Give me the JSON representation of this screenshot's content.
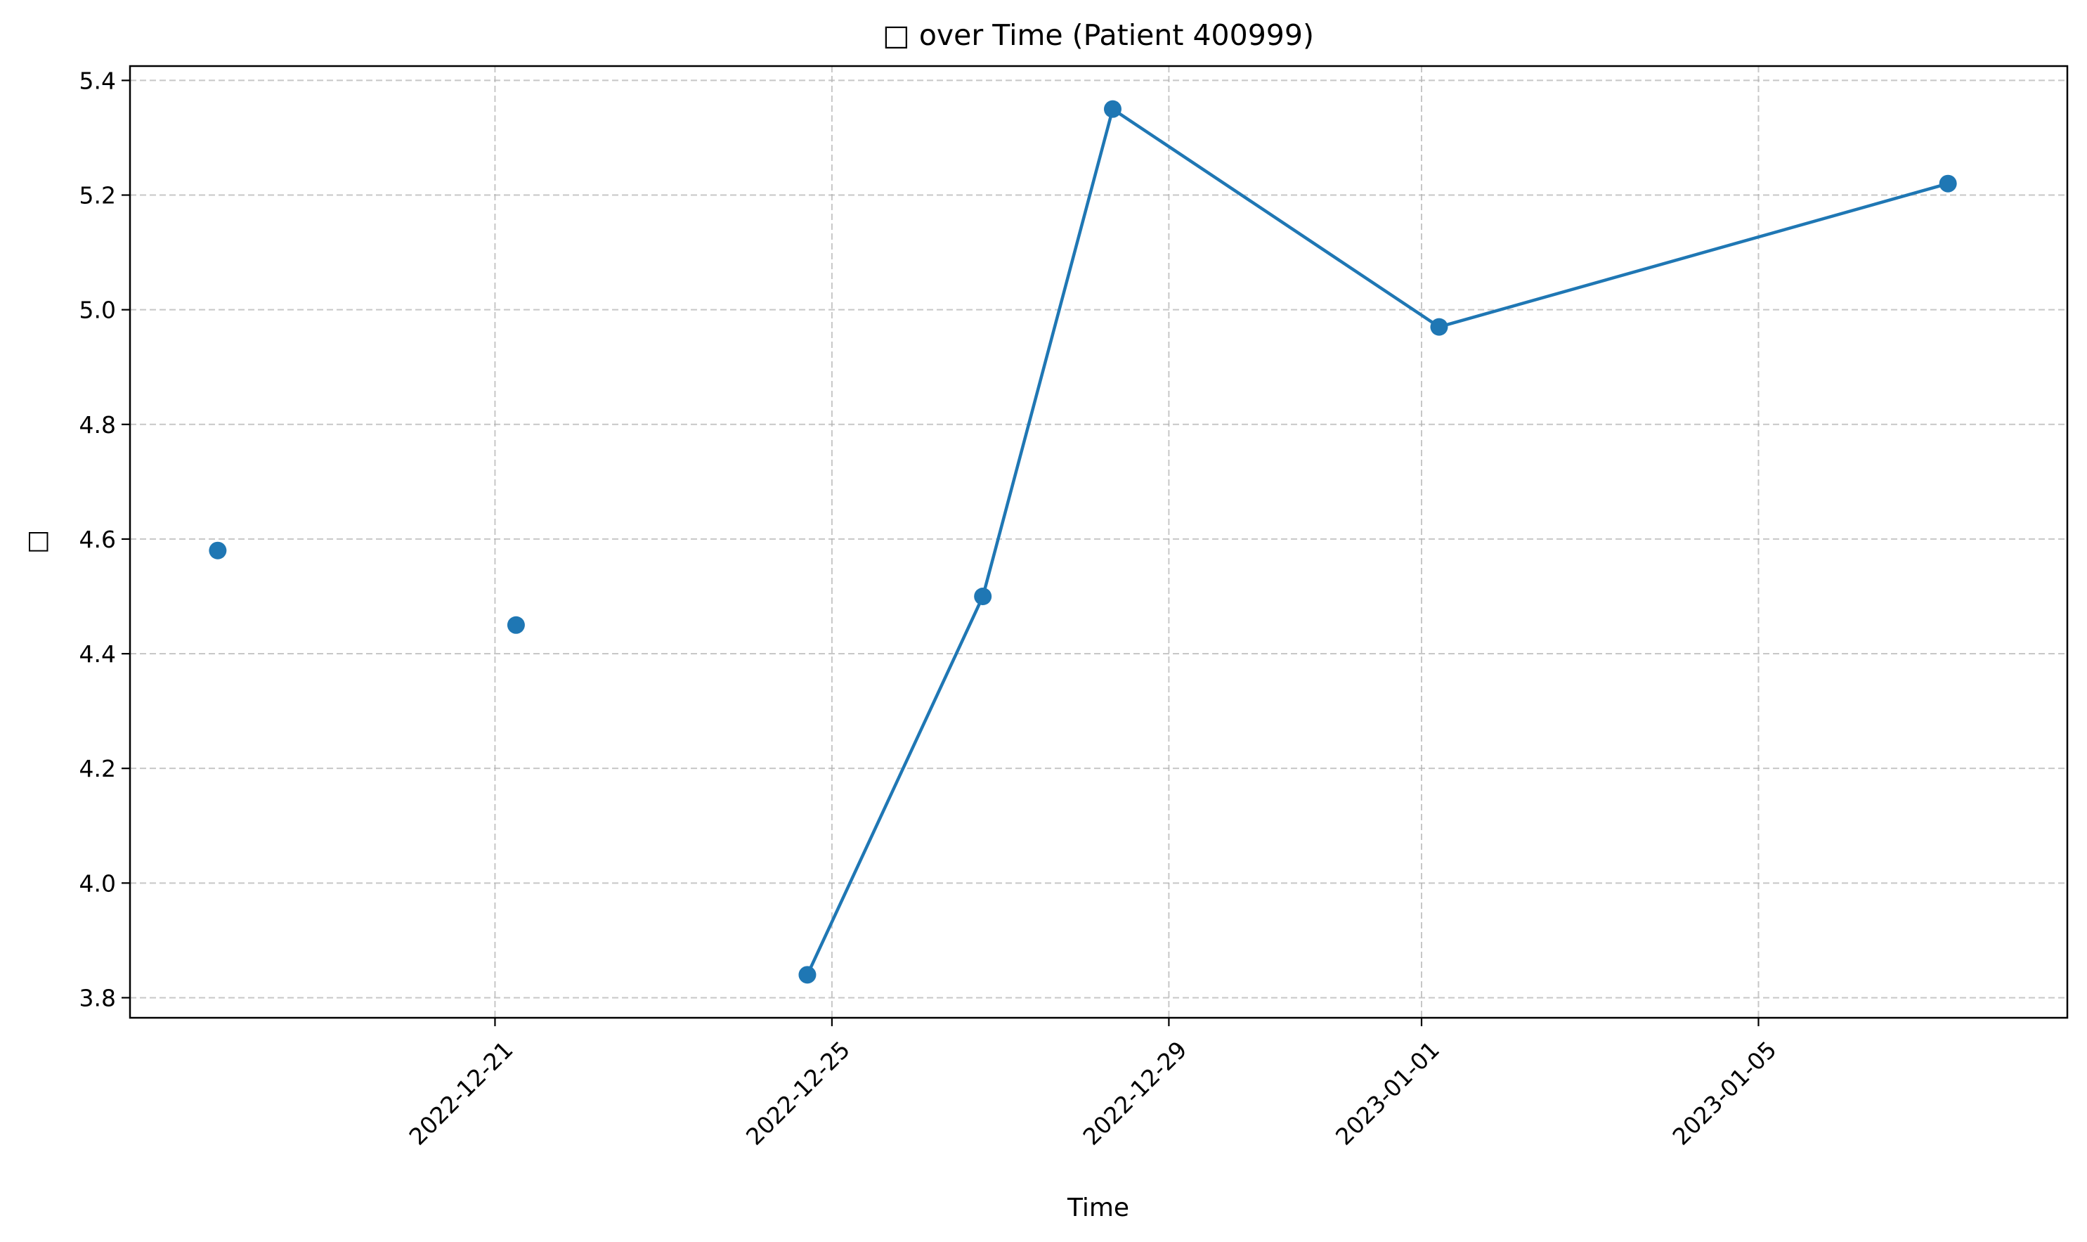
{
  "chart_data": {
    "type": "line",
    "title": "□ over Time (Patient 400999)",
    "xlabel": "Time",
    "ylabel": "□",
    "x_type": "date",
    "xlim": [
      "2022-12-16T16:00",
      "2023-01-08T16:00"
    ],
    "ylim": [
      3.765,
      5.425
    ],
    "x_ticks": [
      "2022-12-21",
      "2022-12-25",
      "2022-12-29",
      "2023-01-01",
      "2023-01-05"
    ],
    "y_ticks": [
      "3.8",
      "4.0",
      "4.2",
      "4.4",
      "4.6",
      "4.8",
      "5.0",
      "5.2",
      "5.4"
    ],
    "grid": true,
    "series": [
      {
        "color": "#1f77b4",
        "points": [
          {
            "x": "2022-12-17T17:00",
            "y": 4.58,
            "connected": false
          },
          {
            "x": "2022-12-21T06:00",
            "y": 4.45,
            "connected": false
          },
          {
            "x": "2022-12-24T17:00",
            "y": 3.84,
            "connected": true
          },
          {
            "x": "2022-12-26T19:00",
            "y": 4.5,
            "connected": true
          },
          {
            "x": "2022-12-28T08:00",
            "y": 5.35,
            "connected": true
          },
          {
            "x": "2023-01-01T05:00",
            "y": 4.97,
            "connected": true
          },
          {
            "x": "2023-01-07T06:00",
            "y": 5.22,
            "connected": true
          }
        ]
      }
    ]
  }
}
